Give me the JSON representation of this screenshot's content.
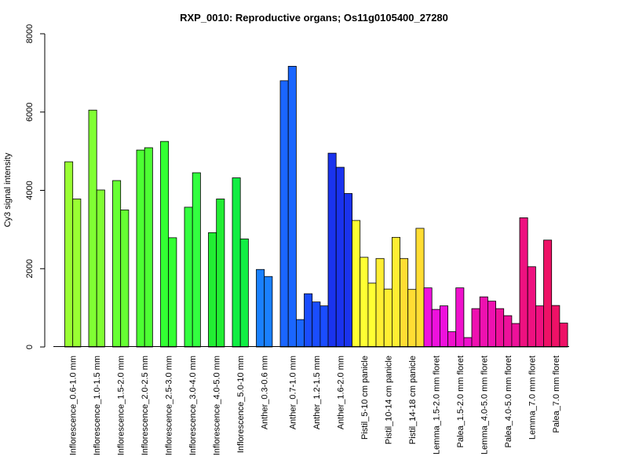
{
  "chart_data": {
    "type": "bar",
    "title": "RXP_0010: Reproductive organs; Os11g0105400_27280",
    "xlabel": "",
    "ylabel": "Cy3 signal intensity",
    "ylim": [
      0,
      8000
    ],
    "yticks": [
      0,
      2000,
      4000,
      6000,
      8000
    ],
    "grid": false,
    "legend": "none",
    "categories": [
      "Inflorescence_0.6-1.0 mm",
      "Inflorescence_1.0-1.5 mm",
      "Inflorescence_1.5-2.0 mm",
      "Inflorescence_2.0-2.5 mm",
      "Inflorescence_2.5-3.0 mm",
      "Inflorescence_3.0-4.0 mm",
      "Inflorescence_4.0-5.0 mm",
      "Inflorescence_5.0-10 mm",
      "Anther_0.3-0.6 mm",
      "Anther_0.7-1.0 mm",
      "Anther_1.2-1.5 mm",
      "Anther_1.6-2.0 mm",
      "Pistil_5-10 cm panicle",
      "Pistil_10-14 cm panicle",
      "Pistil_14-18 cm panicle",
      "Lemma_1.5-2.0 mm floret",
      "Palea_1.5-2.0 mm floret",
      "Lemma_4.0-5.0 mm floret",
      "Palea_4.0-5.0 mm floret",
      "Lemma_7.0 mm floret",
      "Palea_7.0 mm floret"
    ],
    "groups": [
      {
        "values": [
          4730,
          3780
        ],
        "color": "#99ff33"
      },
      {
        "values": [
          6050,
          4010
        ],
        "color": "#80ff33"
      },
      {
        "values": [
          4250,
          3500
        ],
        "color": "#66ff33"
      },
      {
        "values": [
          5030,
          5090
        ],
        "color": "#4dff33"
      },
      {
        "values": [
          5250,
          2790
        ],
        "color": "#33ff33"
      },
      {
        "values": [
          3570,
          4450
        ],
        "color": "#33ff40"
      },
      {
        "values": [
          2920,
          3780
        ],
        "color": "#22ee33"
      },
      {
        "values": [
          4320,
          2760
        ],
        "color": "#11ee44"
      },
      {
        "values": [
          1980,
          1800
        ],
        "color": "#1a80ff"
      },
      {
        "values": [
          6800,
          7170,
          700
        ],
        "color": "#1a66ff"
      },
      {
        "values": [
          1360,
          1150,
          1050
        ],
        "color": "#1a4dff"
      },
      {
        "values": [
          4950,
          4590,
          3920
        ],
        "color": "#1a33ee"
      },
      {
        "values": [
          3230,
          2290,
          1630
        ],
        "color": "#ffff33"
      },
      {
        "values": [
          2260,
          1480,
          2800
        ],
        "color": "#ffee33"
      },
      {
        "values": [
          2260,
          1470,
          3030
        ],
        "color": "#ffdd33"
      },
      {
        "values": [
          1510,
          960,
          1050
        ],
        "color": "#ee11dd"
      },
      {
        "values": [
          390,
          1510,
          240
        ],
        "color": "#ee11cc"
      },
      {
        "values": [
          980,
          1280,
          1170
        ],
        "color": "#ee11b0"
      },
      {
        "values": [
          980,
          800,
          600
        ],
        "color": "#ee119a"
      },
      {
        "values": [
          3300,
          2050,
          1050
        ],
        "color": "#ee1180"
      },
      {
        "values": [
          2730,
          1060,
          610
        ],
        "color": "#ee1166"
      }
    ]
  }
}
